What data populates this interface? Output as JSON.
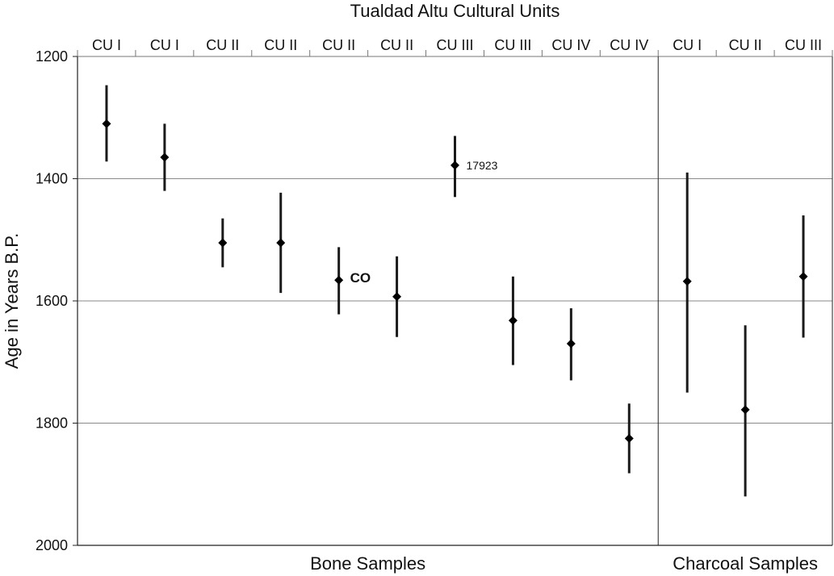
{
  "chart_data": {
    "type": "scatter",
    "title": "Tualdad Altu Cultural Units",
    "ylabel": "Age in Years B.P.",
    "ylim": [
      2000,
      1200
    ],
    "y_inverted": true,
    "yticks": [
      "1200",
      "1400",
      "1600",
      "1800",
      "2000"
    ],
    "grid": true,
    "categories": [
      "CU I",
      "CU I",
      "CU II",
      "CU II",
      "CU II",
      "CU II",
      "CU III",
      "CU III",
      "CU IV",
      "CU IV",
      "CU I",
      "CU II",
      "CU III"
    ],
    "groups": [
      {
        "label": "Bone Samples",
        "count": 10
      },
      {
        "label": "Charcoal Samples",
        "count": 3
      }
    ],
    "points": [
      {
        "y": 1310,
        "low": 1247,
        "high": 1372
      },
      {
        "y": 1365,
        "low": 1310,
        "high": 1420
      },
      {
        "y": 1505,
        "low": 1465,
        "high": 1545
      },
      {
        "y": 1505,
        "low": 1423,
        "high": 1587
      },
      {
        "y": 1566,
        "low": 1512,
        "high": 1622
      },
      {
        "y": 1593,
        "low": 1527,
        "high": 1659
      },
      {
        "y": 1378,
        "low": 1330,
        "high": 1430
      },
      {
        "y": 1632,
        "low": 1560,
        "high": 1705
      },
      {
        "y": 1670,
        "low": 1612,
        "high": 1730
      },
      {
        "y": 1825,
        "low": 1768,
        "high": 1882
      },
      {
        "y": 1568,
        "low": 1390,
        "high": 1750
      },
      {
        "y": 1778,
        "low": 1640,
        "high": 1920
      },
      {
        "y": 1560,
        "low": 1460,
        "high": 1660
      }
    ],
    "annotations": [
      {
        "index": 4,
        "text": "CO"
      },
      {
        "index": 6,
        "text": "17923"
      }
    ]
  }
}
